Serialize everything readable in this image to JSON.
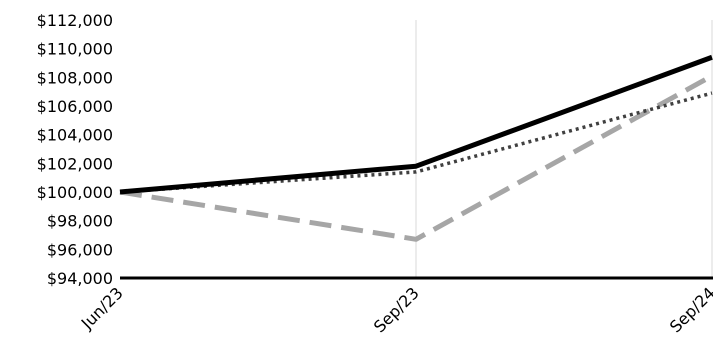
{
  "chart_data": {
    "type": "line",
    "categories": [
      "Jun/23",
      "Sep/23",
      "Sep/24"
    ],
    "ylim": [
      94000,
      112000
    ],
    "yticks": [
      94000,
      96000,
      98000,
      100000,
      102000,
      104000,
      106000,
      108000,
      110000,
      112000
    ],
    "ytick_labels": [
      "$94,000",
      "$96,000",
      "$98,000",
      "$100,000",
      "$102,000",
      "$104,000",
      "$106,000",
      "$108,000",
      "$110,000",
      "$112,000"
    ],
    "grid": "vertical",
    "series": [
      {
        "values": [
          100000,
          101800,
          109400
        ],
        "color": "#000000",
        "style": "solid"
      },
      {
        "values": [
          100000,
          96700,
          108100
        ],
        "color": "#a6a6a6",
        "style": "dashed"
      },
      {
        "values": [
          100000,
          101400,
          106900
        ],
        "color": "#404040",
        "style": "dotted"
      }
    ]
  }
}
